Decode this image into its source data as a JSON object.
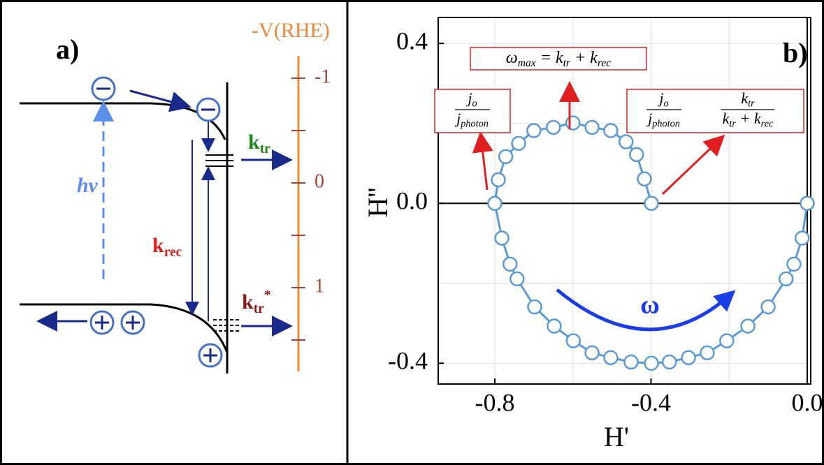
{
  "diagram": {
    "label": "a)",
    "scale": {
      "title": "-V(RHE)",
      "ticks": [
        -1,
        0,
        1
      ],
      "minor_ticks": [
        -0.5,
        0.5,
        1.5
      ],
      "color": "#f0883a",
      "tick_color": "#a0443a"
    },
    "photon": "hν",
    "k_tr": [
      {
        "t": "k"
      },
      {
        "t": "tr",
        "sub": true
      }
    ],
    "k_rec": [
      {
        "t": "k"
      },
      {
        "t": "rec",
        "sub": true
      }
    ],
    "k_tr_star": [
      {
        "t": "k"
      },
      {
        "t": "tr",
        "sub": true
      },
      {
        "t": "*",
        "sup": true
      }
    ]
  },
  "chart_data": {
    "type": "line",
    "label": "b)",
    "x_label": "H'",
    "y_label": "H''",
    "xlim": [
      -0.945,
      0.009
    ],
    "ylim": [
      -0.452,
      0.465
    ],
    "xticks": [
      -0.8,
      -0.4,
      {
        "value": 0,
        "label": "0.0"
      }
    ],
    "yticks": [
      -0.4,
      {
        "value": 0,
        "label": "0.0"
      },
      0.4
    ],
    "minor_xticks": [
      -0.6,
      -0.2
    ],
    "minor_yticks": [
      -0.2,
      0.2
    ],
    "grid": true,
    "x": [
      0,
      -0.013,
      -0.034,
      -0.054,
      -0.1,
      -0.152,
      -0.206,
      -0.256,
      -0.304,
      -0.353,
      -0.399,
      -0.451,
      -0.503,
      -0.551,
      -0.599,
      -0.648,
      -0.698,
      -0.743,
      -0.761,
      -0.782,
      -0.8,
      -0.791,
      -0.772,
      -0.739,
      -0.7,
      -0.65,
      -0.6,
      -0.551,
      -0.503,
      -0.464,
      -0.437,
      -0.417,
      -0.399
    ],
    "series": [
      {
        "color": "#5b9bd5",
        "values": [
          0,
          -0.087,
          -0.152,
          -0.189,
          -0.259,
          -0.307,
          -0.344,
          -0.374,
          -0.386,
          -0.397,
          -0.4,
          -0.397,
          -0.386,
          -0.374,
          -0.344,
          -0.307,
          -0.259,
          -0.189,
          -0.152,
          -0.087,
          0,
          0.059,
          0.117,
          0.15,
          0.182,
          0.19,
          0.201,
          0.19,
          0.182,
          0.154,
          0.122,
          0.061,
          0
        ]
      }
    ],
    "annotations": {
      "omega_max": [
        {
          "t": "ω"
        },
        {
          "t": "max",
          "sub": true
        },
        {
          "t": " = "
        },
        {
          "t": "k"
        },
        {
          "t": "tr",
          "sub": true
        },
        {
          "t": " + "
        },
        {
          "t": "k"
        },
        {
          "t": "rec",
          "sub": true
        }
      ],
      "ratio": {
        "num": [
          {
            "t": "j"
          },
          {
            "t": "o",
            "sub": true
          }
        ],
        "den": [
          {
            "t": "j"
          },
          {
            "t": "photon",
            "sub": true
          }
        ]
      },
      "ratio2": {
        "num": [
          {
            "t": "j"
          },
          {
            "t": "o",
            "sub": true
          }
        ],
        "den": [
          {
            "t": "j"
          },
          {
            "t": "photon",
            "sub": true
          }
        ]
      },
      "fraction": {
        "num": [
          {
            "t": "k"
          },
          {
            "t": "tr",
            "sub": true
          }
        ],
        "den": [
          {
            "t": "k"
          },
          {
            "t": "tr",
            "sub": true
          },
          {
            "t": " + "
          },
          {
            "t": "k"
          },
          {
            "t": "rec",
            "sub": true
          }
        ]
      },
      "omega": "ω"
    }
  }
}
